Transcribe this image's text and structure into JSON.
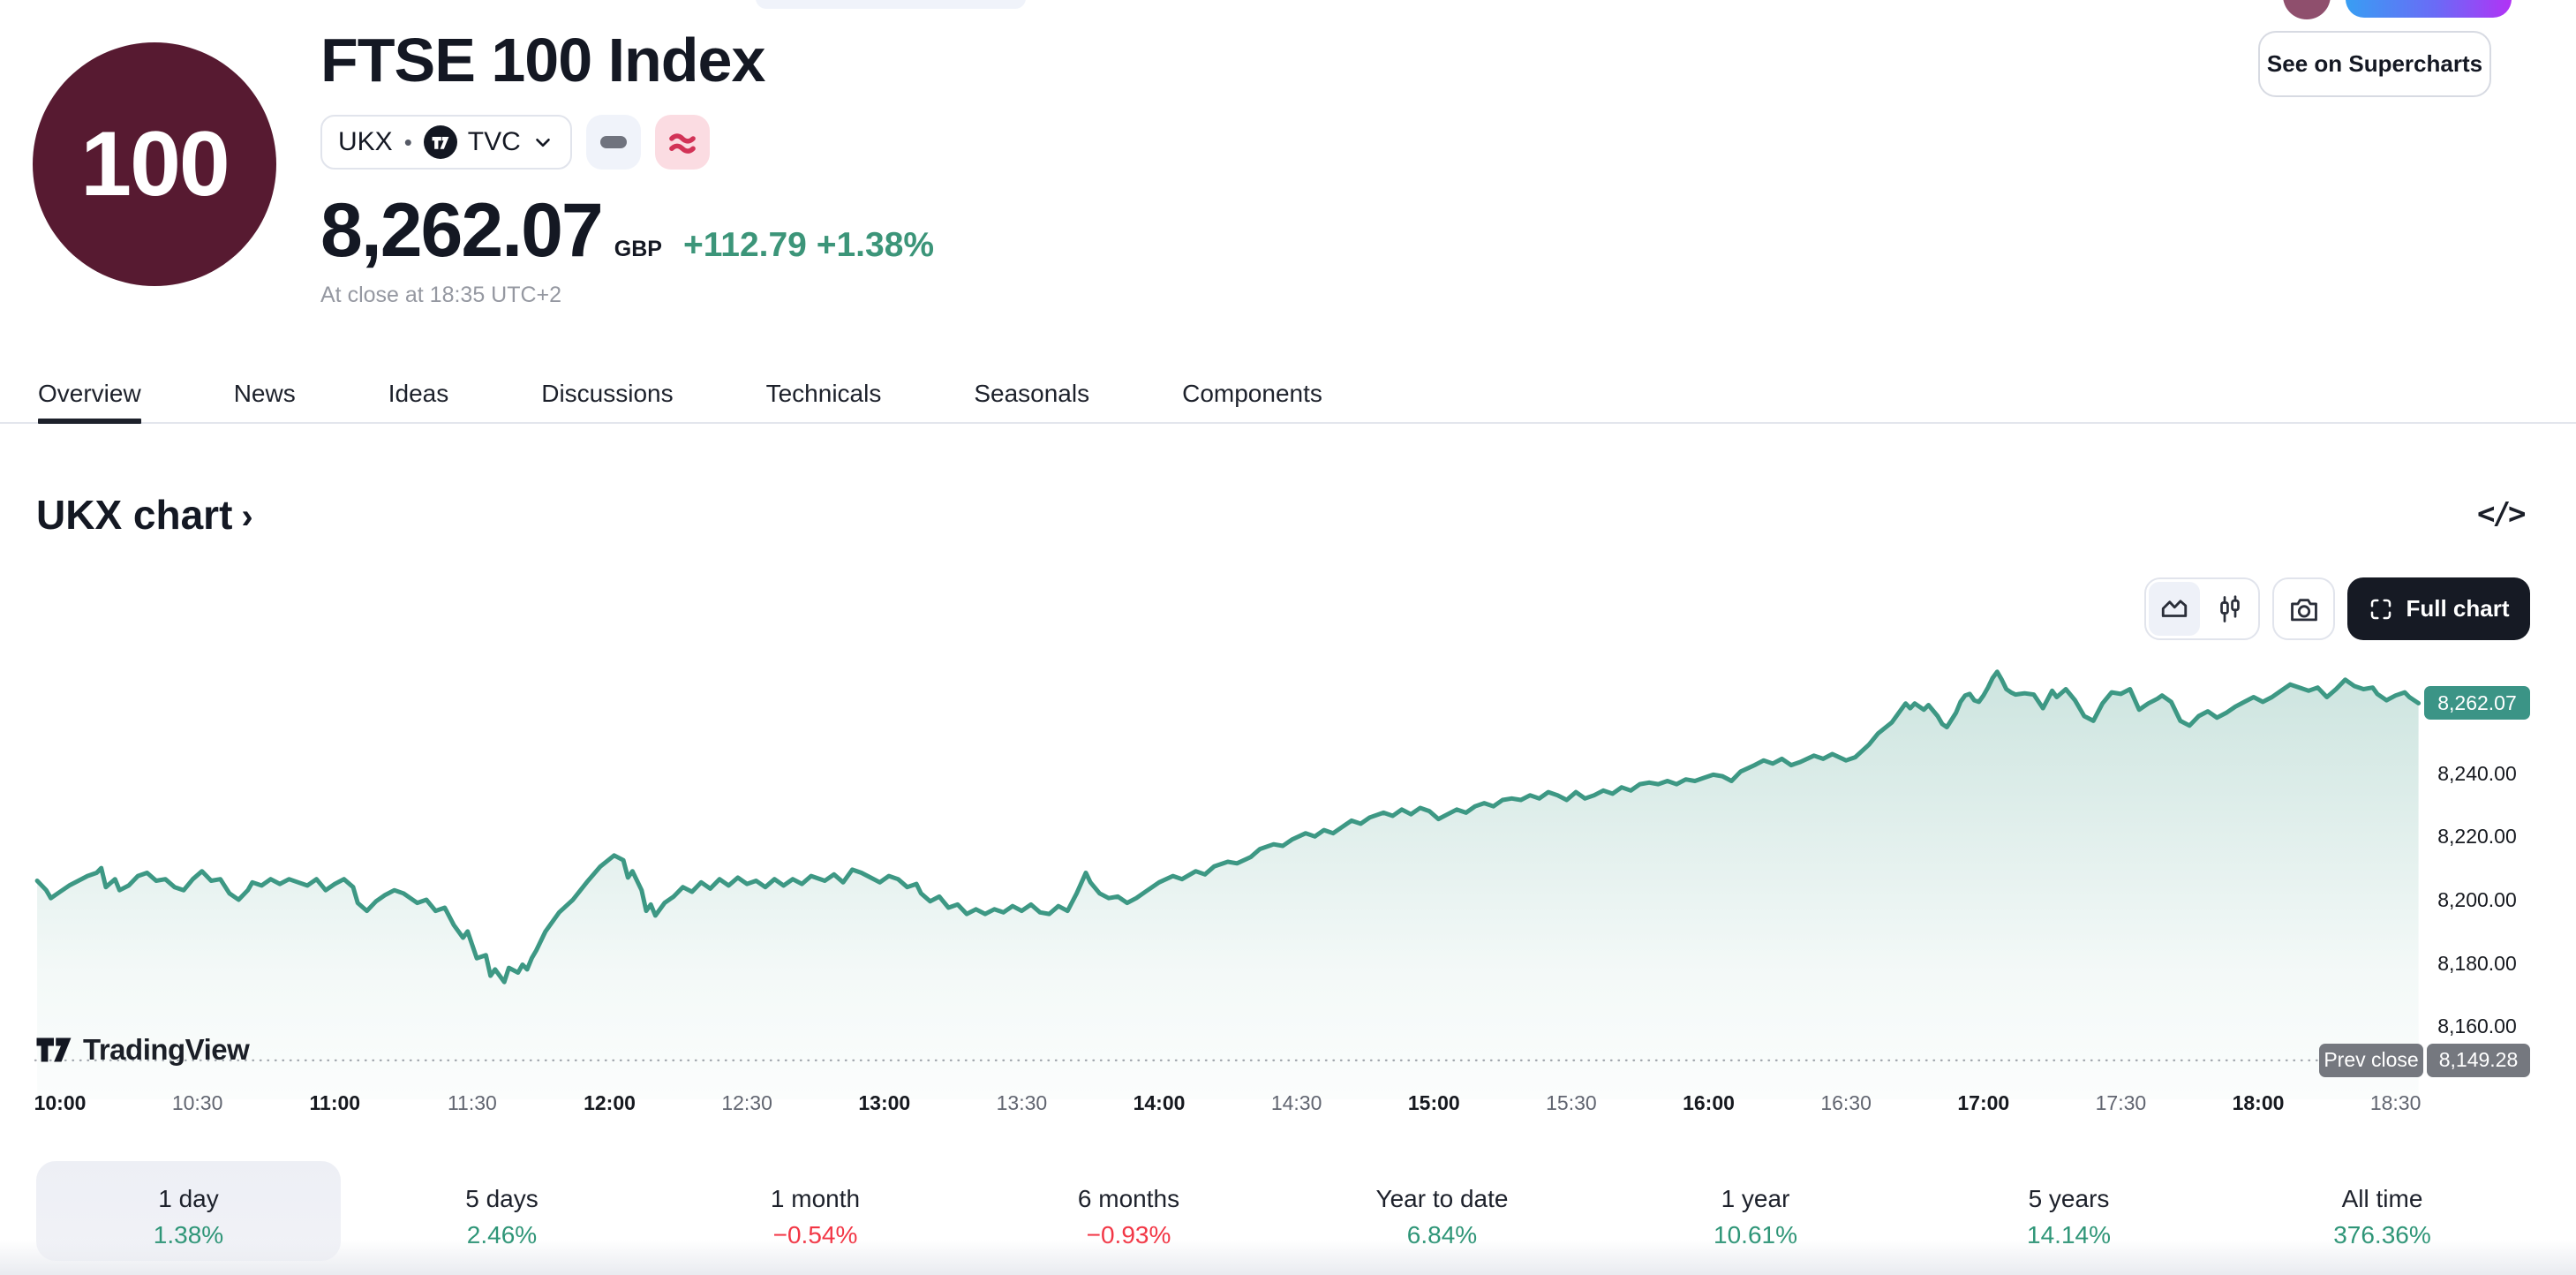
{
  "header": {
    "logo_text": "100",
    "title": "FTSE 100 Index",
    "symbol": "UKX",
    "separator": "•",
    "exchange": "TVC",
    "price": "8,262.07",
    "currency": "GBP",
    "change_abs": "+112.79",
    "change_pct": "+1.38%",
    "close_note": "At close at 18:35 UTC+2",
    "supercharts_button": "See on Supercharts"
  },
  "tabs": {
    "items": [
      "Overview",
      "News",
      "Ideas",
      "Discussions",
      "Technicals",
      "Seasonals",
      "Components"
    ],
    "active": "Overview"
  },
  "section": {
    "title": "UKX chart",
    "chevron": "›",
    "code_icon_text": "</>"
  },
  "toolbar": {
    "full_chart_label": "Full chart",
    "icons": [
      "area-chart-icon",
      "candlestick-icon",
      "camera-icon",
      "fullscreen-icon"
    ]
  },
  "attribution": {
    "brand": "TradingView"
  },
  "colors": {
    "accent_green": "#2e9577",
    "change_green": "#3c9579",
    "negative_red": "#f23645",
    "line": "#3d9884",
    "last_badge_bg": "#3b9486",
    "prev_badge_bg": "#75787f",
    "logo_bg": "#571a31"
  },
  "chart_data": {
    "type": "area",
    "title": "UKX chart",
    "xlabel": "",
    "ylabel": "",
    "legend": "none",
    "grid": "off",
    "x_range_minutes": [
      "09:55",
      "18:35"
    ],
    "ylim": [
      8140,
      8280
    ],
    "last_price": 8262.07,
    "last_price_label": "8,262.07",
    "prev_close": 8149.28,
    "prev_close_label": "8,149.28",
    "prev_close_text": "Prev close",
    "y_ticks": [
      {
        "label": "8,240.00",
        "value": 8240
      },
      {
        "label": "8,220.00",
        "value": 8220
      },
      {
        "label": "8,200.00",
        "value": 8200
      },
      {
        "label": "8,180.00",
        "value": 8180
      },
      {
        "label": "8,160.00",
        "value": 8160
      }
    ],
    "x_ticks": [
      {
        "label": "10:00",
        "major": true
      },
      {
        "label": "10:30",
        "major": false
      },
      {
        "label": "11:00",
        "major": true
      },
      {
        "label": "11:30",
        "major": false
      },
      {
        "label": "12:00",
        "major": true
      },
      {
        "label": "12:30",
        "major": false
      },
      {
        "label": "13:00",
        "major": true
      },
      {
        "label": "13:30",
        "major": false
      },
      {
        "label": "14:00",
        "major": true
      },
      {
        "label": "14:30",
        "major": false
      },
      {
        "label": "15:00",
        "major": true
      },
      {
        "label": "15:30",
        "major": false
      },
      {
        "label": "16:00",
        "major": true
      },
      {
        "label": "16:30",
        "major": false
      },
      {
        "label": "17:00",
        "major": true
      },
      {
        "label": "17:30",
        "major": false
      },
      {
        "label": "18:00",
        "major": true
      },
      {
        "label": "18:30",
        "major": false
      }
    ],
    "points": [
      [
        "09:55",
        8206
      ],
      [
        "09:57",
        8203
      ],
      [
        "09:58",
        8200.5
      ],
      [
        "10:00",
        8202.5
      ],
      [
        "10:02",
        8204.5
      ],
      [
        "10:04",
        8206
      ],
      [
        "10:06",
        8207.5
      ],
      [
        "10:08",
        8208.5
      ],
      [
        "10:09",
        8210
      ],
      [
        "10:10",
        8204
      ],
      [
        "10:12",
        8206.5
      ],
      [
        "10:13",
        8203
      ],
      [
        "10:15",
        8204.5
      ],
      [
        "10:17",
        8207.5
      ],
      [
        "10:19",
        8208.5
      ],
      [
        "10:21",
        8206
      ],
      [
        "10:23",
        8206.5
      ],
      [
        "10:25",
        8204
      ],
      [
        "10:27",
        8203
      ],
      [
        "10:29",
        8206.5
      ],
      [
        "10:31",
        8209
      ],
      [
        "10:33",
        8206
      ],
      [
        "10:35",
        8206.5
      ],
      [
        "10:37",
        8202
      ],
      [
        "10:39",
        8200
      ],
      [
        "10:41",
        8203
      ],
      [
        "10:42",
        8205.5
      ],
      [
        "10:44",
        8204.5
      ],
      [
        "10:46",
        8206.5
      ],
      [
        "10:48",
        8205
      ],
      [
        "10:50",
        8206.5
      ],
      [
        "10:52",
        8205.5
      ],
      [
        "10:54",
        8204.5
      ],
      [
        "10:56",
        8206.5
      ],
      [
        "10:58",
        8203
      ],
      [
        "11:00",
        8205
      ],
      [
        "11:02",
        8206.5
      ],
      [
        "11:04",
        8204
      ],
      [
        "11:05",
        8199
      ],
      [
        "11:07",
        8196.5
      ],
      [
        "11:09",
        8199.5
      ],
      [
        "11:11",
        8201.5
      ],
      [
        "11:13",
        8203
      ],
      [
        "11:15",
        8202
      ],
      [
        "11:18",
        8199
      ],
      [
        "11:20",
        8200
      ],
      [
        "11:22",
        8196.5
      ],
      [
        "11:24",
        8197.5
      ],
      [
        "11:26",
        8192
      ],
      [
        "11:28",
        8188
      ],
      [
        "11:29",
        8190
      ],
      [
        "11:31",
        8181.5
      ],
      [
        "11:33",
        8182.5
      ],
      [
        "11:34",
        8176
      ],
      [
        "11:35",
        8178
      ],
      [
        "11:37",
        8174
      ],
      [
        "11:38",
        8178.5
      ],
      [
        "11:40",
        8177
      ],
      [
        "11:41",
        8179.5
      ],
      [
        "11:42",
        8178
      ],
      [
        "11:43",
        8181.5
      ],
      [
        "11:44",
        8184
      ],
      [
        "11:46",
        8190
      ],
      [
        "11:49",
        8196
      ],
      [
        "11:52",
        8200
      ],
      [
        "11:55",
        8205.5
      ],
      [
        "11:58",
        8210.5
      ],
      [
        "12:01",
        8214
      ],
      [
        "12:03",
        8212.5
      ],
      [
        "12:04",
        8207
      ],
      [
        "12:05",
        8209
      ],
      [
        "12:07",
        8203
      ],
      [
        "12:08",
        8196.5
      ],
      [
        "12:09",
        8198.5
      ],
      [
        "12:10",
        8195
      ],
      [
        "12:12",
        8199
      ],
      [
        "12:14",
        8201
      ],
      [
        "12:16",
        8204
      ],
      [
        "12:18",
        8202.5
      ],
      [
        "12:20",
        8205.5
      ],
      [
        "12:22",
        8203.5
      ],
      [
        "12:24",
        8206.5
      ],
      [
        "12:26",
        8204.5
      ],
      [
        "12:28",
        8207
      ],
      [
        "12:30",
        8205
      ],
      [
        "12:32",
        8206
      ],
      [
        "12:34",
        8204
      ],
      [
        "12:36",
        8206.5
      ],
      [
        "12:38",
        8204.5
      ],
      [
        "12:40",
        8206.5
      ],
      [
        "12:42",
        8205
      ],
      [
        "12:44",
        8207.5
      ],
      [
        "12:47",
        8206
      ],
      [
        "12:49",
        8208
      ],
      [
        "12:51",
        8205.5
      ],
      [
        "12:53",
        8209.5
      ],
      [
        "12:55",
        8208.5
      ],
      [
        "12:57",
        8207
      ],
      [
        "12:59",
        8205.5
      ],
      [
        "13:01",
        8207.5
      ],
      [
        "13:03",
        8206.5
      ],
      [
        "13:05",
        8204
      ],
      [
        "13:07",
        8205
      ],
      [
        "13:08",
        8202
      ],
      [
        "13:10",
        8199.5
      ],
      [
        "13:12",
        8201
      ],
      [
        "13:14",
        8197.5
      ],
      [
        "13:16",
        8198.5
      ],
      [
        "13:18",
        8195.5
      ],
      [
        "13:20",
        8197
      ],
      [
        "13:22",
        8195.5
      ],
      [
        "13:24",
        8197
      ],
      [
        "13:26",
        8196
      ],
      [
        "13:28",
        8198
      ],
      [
        "13:30",
        8196.5
      ],
      [
        "13:32",
        8198.5
      ],
      [
        "13:34",
        8196
      ],
      [
        "13:36",
        8195.5
      ],
      [
        "13:38",
        8198
      ],
      [
        "13:40",
        8196.5
      ],
      [
        "13:42",
        8202
      ],
      [
        "13:44",
        8208.5
      ],
      [
        "13:45",
        8205.5
      ],
      [
        "13:47",
        8202
      ],
      [
        "13:49",
        8200.5
      ],
      [
        "13:51",
        8201
      ],
      [
        "13:53",
        8199
      ],
      [
        "13:55",
        8200.5
      ],
      [
        "13:57",
        8202.5
      ],
      [
        "14:00",
        8205.5
      ],
      [
        "14:03",
        8207.5
      ],
      [
        "14:05",
        8206.5
      ],
      [
        "14:08",
        8209
      ],
      [
        "14:10",
        8208
      ],
      [
        "14:12",
        8210.5
      ],
      [
        "14:15",
        8212
      ],
      [
        "14:17",
        8211.5
      ],
      [
        "14:20",
        8213.5
      ],
      [
        "14:22",
        8216
      ],
      [
        "14:25",
        8217.5
      ],
      [
        "14:27",
        8217
      ],
      [
        "14:29",
        8219
      ],
      [
        "14:32",
        8221
      ],
      [
        "14:34",
        8220
      ],
      [
        "14:36",
        8222
      ],
      [
        "14:38",
        8221
      ],
      [
        "14:40",
        8223
      ],
      [
        "14:42",
        8225
      ],
      [
        "14:44",
        8224
      ],
      [
        "14:46",
        8226
      ],
      [
        "14:49",
        8227.5
      ],
      [
        "14:51",
        8226.5
      ],
      [
        "14:53",
        8228.5
      ],
      [
        "14:55",
        8227
      ],
      [
        "14:57",
        8229
      ],
      [
        "14:59",
        8228
      ],
      [
        "15:01",
        8225.5
      ],
      [
        "15:03",
        8227
      ],
      [
        "15:05",
        8228.5
      ],
      [
        "15:07",
        8227.5
      ],
      [
        "15:09",
        8229.5
      ],
      [
        "15:11",
        8230.5
      ],
      [
        "15:13",
        8229.5
      ],
      [
        "15:15",
        8231.5
      ],
      [
        "15:17",
        8232
      ],
      [
        "15:19",
        8231.5
      ],
      [
        "15:21",
        8233
      ],
      [
        "15:23",
        8232
      ],
      [
        "15:25",
        8234
      ],
      [
        "15:27",
        8233
      ],
      [
        "15:29",
        8231.5
      ],
      [
        "15:31",
        8234
      ],
      [
        "15:33",
        8232
      ],
      [
        "15:35",
        8233
      ],
      [
        "15:37",
        8234.5
      ],
      [
        "15:39",
        8233.5
      ],
      [
        "15:41",
        8235.5
      ],
      [
        "15:43",
        8234.5
      ],
      [
        "15:45",
        8236.5
      ],
      [
        "15:47",
        8237
      ],
      [
        "15:49",
        8236.5
      ],
      [
        "15:51",
        8237.5
      ],
      [
        "15:53",
        8236.5
      ],
      [
        "15:55",
        8238
      ],
      [
        "15:57",
        8237.5
      ],
      [
        "15:59",
        8238.5
      ],
      [
        "16:01",
        8239.5
      ],
      [
        "16:03",
        8239
      ],
      [
        "16:05",
        8237.5
      ],
      [
        "16:07",
        8240.5
      ],
      [
        "16:10",
        8242.5
      ],
      [
        "16:12",
        8244
      ],
      [
        "16:14",
        8243
      ],
      [
        "16:16",
        8244.5
      ],
      [
        "16:18",
        8242.5
      ],
      [
        "16:20",
        8243.5
      ],
      [
        "16:23",
        8245.5
      ],
      [
        "16:25",
        8244.5
      ],
      [
        "16:27",
        8246
      ],
      [
        "16:30",
        8244
      ],
      [
        "16:32",
        8245
      ],
      [
        "16:35",
        8249
      ],
      [
        "16:37",
        8252.5
      ],
      [
        "16:40",
        8256
      ],
      [
        "16:42",
        8260
      ],
      [
        "16:43",
        8262
      ],
      [
        "16:44",
        8260.5
      ],
      [
        "16:45",
        8262
      ],
      [
        "16:47",
        8260
      ],
      [
        "16:48",
        8261.5
      ],
      [
        "16:50",
        8258
      ],
      [
        "16:51",
        8255.5
      ],
      [
        "16:52",
        8254.5
      ],
      [
        "16:54",
        8259
      ],
      [
        "16:55",
        8262.5
      ],
      [
        "16:56",
        8264.5
      ],
      [
        "16:57",
        8265
      ],
      [
        "16:58",
        8263
      ],
      [
        "16:59",
        8262.5
      ],
      [
        "17:00",
        8264.5
      ],
      [
        "17:01",
        8267
      ],
      [
        "17:02",
        8270
      ],
      [
        "17:03",
        8272
      ],
      [
        "17:04",
        8269.5
      ],
      [
        "17:05",
        8266.5
      ],
      [
        "17:06",
        8265.5
      ],
      [
        "17:07",
        8264.8
      ],
      [
        "17:09",
        8265.2
      ],
      [
        "17:11",
        8264.8
      ],
      [
        "17:13",
        8260.5
      ],
      [
        "17:15",
        8266
      ],
      [
        "17:16",
        8264
      ],
      [
        "17:18",
        8266.5
      ],
      [
        "17:20",
        8263
      ],
      [
        "17:22",
        8258
      ],
      [
        "17:24",
        8256.5
      ],
      [
        "17:26",
        8262
      ],
      [
        "17:28",
        8265.5
      ],
      [
        "17:30",
        8265
      ],
      [
        "17:32",
        8266.5
      ],
      [
        "17:34",
        8260
      ],
      [
        "17:36",
        8262
      ],
      [
        "17:38",
        8263.5
      ],
      [
        "17:39",
        8264.5
      ],
      [
        "17:41",
        8262.5
      ],
      [
        "17:43",
        8256.5
      ],
      [
        "17:45",
        8255
      ],
      [
        "17:47",
        8258
      ],
      [
        "17:49",
        8259.5
      ],
      [
        "17:51",
        8257.5
      ],
      [
        "17:53",
        8259
      ],
      [
        "17:55",
        8261
      ],
      [
        "17:57",
        8262.5
      ],
      [
        "17:59",
        8264
      ],
      [
        "18:01",
        8262.5
      ],
      [
        "18:03",
        8264
      ],
      [
        "18:05",
        8266
      ],
      [
        "18:07",
        8268
      ],
      [
        "18:09",
        8267
      ],
      [
        "18:11",
        8266
      ],
      [
        "18:13",
        8267
      ],
      [
        "18:15",
        8264
      ],
      [
        "18:17",
        8266.5
      ],
      [
        "18:19",
        8269.5
      ],
      [
        "18:21",
        8267.5
      ],
      [
        "18:23",
        8266.5
      ],
      [
        "18:25",
        8267
      ],
      [
        "18:26",
        8265
      ],
      [
        "18:28",
        8263
      ],
      [
        "18:30",
        8264.5
      ],
      [
        "18:32",
        8265.5
      ],
      [
        "18:33",
        8264
      ],
      [
        "18:35",
        8262.07
      ]
    ]
  },
  "periods": {
    "items": [
      {
        "label": "1 day",
        "value": "1.38%",
        "direction": "up",
        "active": true
      },
      {
        "label": "5 days",
        "value": "2.46%",
        "direction": "up",
        "active": false
      },
      {
        "label": "1 month",
        "value": "−0.54%",
        "direction": "down",
        "active": false
      },
      {
        "label": "6 months",
        "value": "−0.93%",
        "direction": "down",
        "active": false
      },
      {
        "label": "Year to date",
        "value": "6.84%",
        "direction": "up",
        "active": false
      },
      {
        "label": "1 year",
        "value": "10.61%",
        "direction": "up",
        "active": false
      },
      {
        "label": "5 years",
        "value": "14.14%",
        "direction": "up",
        "active": false
      },
      {
        "label": "All time",
        "value": "376.36%",
        "direction": "up",
        "active": false
      }
    ]
  }
}
